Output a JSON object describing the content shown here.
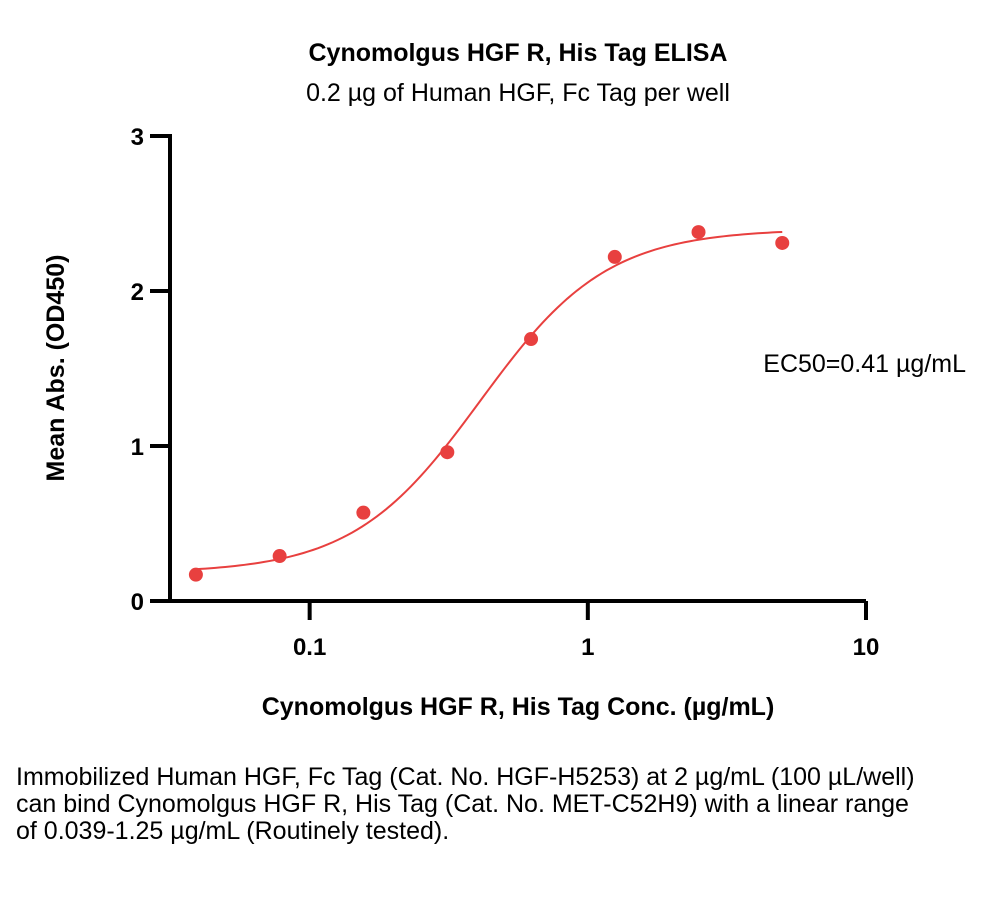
{
  "chart_data": {
    "type": "scatter",
    "title": "Cynomolgus HGF R, His Tag ELISA",
    "subtitle": "0.2 µg of Human HGF, Fc Tag per well",
    "xlabel": "Cynomolgus HGF R, His Tag Conc. (µg/mL)",
    "ylabel": "Mean Abs. (OD450)",
    "x_scale": "log",
    "xlim": [
      0.032,
      10
    ],
    "ylim": [
      0,
      3
    ],
    "x_ticks": [
      {
        "value": 0.1,
        "label": "0.1"
      },
      {
        "value": 1,
        "label": "1"
      },
      {
        "value": 10,
        "label": "10"
      }
    ],
    "y_ticks": [
      {
        "value": 0,
        "label": "0"
      },
      {
        "value": 1,
        "label": "1"
      },
      {
        "value": 2,
        "label": "2"
      },
      {
        "value": 3,
        "label": "3"
      }
    ],
    "series": [
      {
        "color": "#e8403f",
        "points": [
          {
            "x": 0.039,
            "y": 0.17
          },
          {
            "x": 0.078,
            "y": 0.29
          },
          {
            "x": 0.156,
            "y": 0.57
          },
          {
            "x": 0.3125,
            "y": 0.96
          },
          {
            "x": 0.625,
            "y": 1.69
          },
          {
            "x": 1.25,
            "y": 2.22
          },
          {
            "x": 2.5,
            "y": 2.38
          },
          {
            "x": 5,
            "y": 2.31
          }
        ],
        "fit": {
          "model": "4PL",
          "bottom": 0.18,
          "top": 2.4,
          "ec50": 0.41,
          "hill": 1.9,
          "x_range": [
            0.039,
            5
          ]
        }
      }
    ],
    "annotations": [
      "EC50=0.41 µg/mL"
    ],
    "grid": false,
    "legend": "none"
  },
  "caption": "Immobilized Human HGF, Fc Tag (Cat. No. HGF-H5253) at 2 µg/mL (100 µL/well) can bind Cynomolgus HGF R, His Tag (Cat. No. MET-C52H9) with a linear range of 0.039-1.25 µg/mL (Routinely tested)."
}
